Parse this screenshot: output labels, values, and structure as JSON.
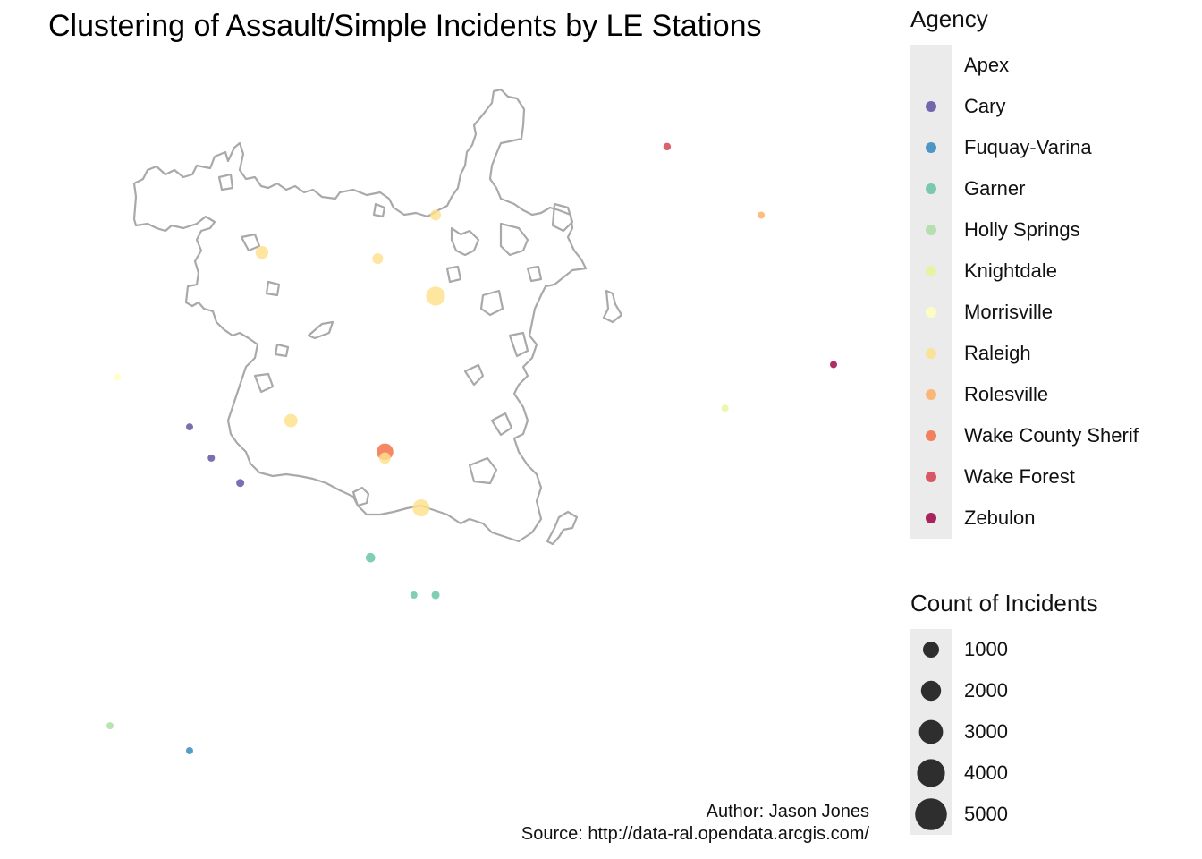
{
  "title": "Clustering of Assault/Simple Incidents by LE Stations",
  "caption": {
    "author": "Author: Jason Jones",
    "source": "Source: http://data-ral.opendata.arcgis.com/"
  },
  "legend_agency": {
    "title": "Agency",
    "items": [
      {
        "label": "Apex",
        "color": "#9E0142",
        "show": false
      },
      {
        "label": "Cary",
        "color": "#5E4FA2"
      },
      {
        "label": "Fuquay-Varina",
        "color": "#3288BD"
      },
      {
        "label": "Garner",
        "color": "#66C2A5"
      },
      {
        "label": "Holly Springs",
        "color": "#ABDDA4"
      },
      {
        "label": "Knightdale",
        "color": "#E6F598"
      },
      {
        "label": "Morrisville",
        "color": "#FFFFBF"
      },
      {
        "label": "Raleigh",
        "color": "#FEE08B"
      },
      {
        "label": "Rolesville",
        "color": "#FDAE61"
      },
      {
        "label": "Wake County Sherif",
        "color": "#F46D43"
      },
      {
        "label": "Wake Forest",
        "color": "#D53E4F"
      },
      {
        "label": "Zebulon",
        "color": "#9E0142"
      }
    ]
  },
  "legend_size": {
    "title": "Count of Incidents",
    "items": [
      {
        "label": "1000",
        "value": 1000
      },
      {
        "label": "2000",
        "value": 2000
      },
      {
        "label": "3000",
        "value": 3000
      },
      {
        "label": "4000",
        "value": 4000
      },
      {
        "label": "5000",
        "value": 5000
      }
    ]
  },
  "chart_data": {
    "type": "scatter",
    "x_unit": "relative west-east position",
    "y_unit": "relative south-north position",
    "points": [
      {
        "agency": "Wake Forest",
        "x": 0.77,
        "y": 0.97,
        "count": 350
      },
      {
        "agency": "Rolesville",
        "x": 0.9,
        "y": 0.86,
        "count": 200
      },
      {
        "agency": "Zebulon",
        "x": 1.0,
        "y": 0.62,
        "count": 250
      },
      {
        "agency": "Knightdale",
        "x": 0.85,
        "y": 0.55,
        "count": 300
      },
      {
        "agency": "Morrisville",
        "x": 0.01,
        "y": 0.6,
        "count": 150
      },
      {
        "agency": "Cary",
        "x": 0.11,
        "y": 0.52,
        "count": 100
      },
      {
        "agency": "Cary",
        "x": 0.14,
        "y": 0.47,
        "count": 200
      },
      {
        "agency": "Cary",
        "x": 0.18,
        "y": 0.43,
        "count": 400
      },
      {
        "agency": "Garner",
        "x": 0.36,
        "y": 0.31,
        "count": 550
      },
      {
        "agency": "Garner",
        "x": 0.42,
        "y": 0.25,
        "count": 100
      },
      {
        "agency": "Garner",
        "x": 0.45,
        "y": 0.25,
        "count": 400
      },
      {
        "agency": "Holly Springs",
        "x": 0.0,
        "y": 0.04,
        "count": 80
      },
      {
        "agency": "Fuquay-Varina",
        "x": 0.11,
        "y": 0.0,
        "count": 100
      },
      {
        "agency": "Wake County Sherif",
        "x": 0.38,
        "y": 0.48,
        "count": 1700
      },
      {
        "agency": "Raleigh",
        "x": 0.21,
        "y": 0.8,
        "count": 1000
      },
      {
        "agency": "Raleigh",
        "x": 0.37,
        "y": 0.79,
        "count": 700
      },
      {
        "agency": "Raleigh",
        "x": 0.45,
        "y": 0.86,
        "count": 700
      },
      {
        "agency": "Raleigh",
        "x": 0.45,
        "y": 0.73,
        "count": 2200
      },
      {
        "agency": "Raleigh",
        "x": 0.25,
        "y": 0.53,
        "count": 1100
      },
      {
        "agency": "Raleigh",
        "x": 0.38,
        "y": 0.47,
        "count": 800
      },
      {
        "agency": "Raleigh",
        "x": 0.43,
        "y": 0.39,
        "count": 1800
      }
    ]
  }
}
